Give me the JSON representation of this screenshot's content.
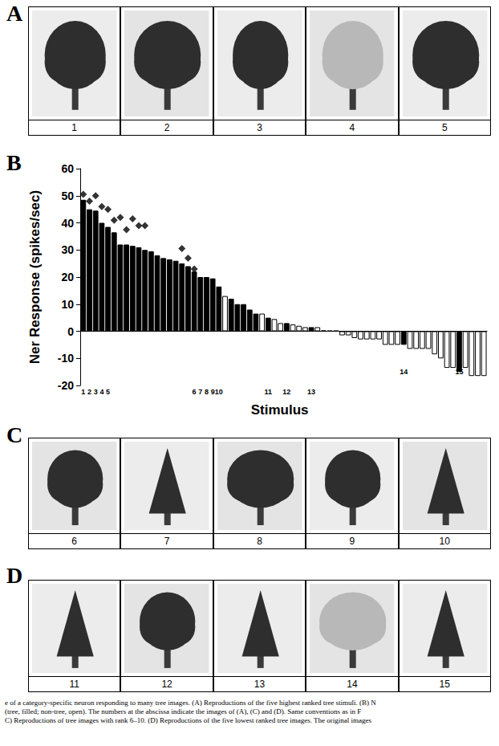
{
  "figure": {
    "panel_labels": [
      "A",
      "B",
      "C",
      "D"
    ],
    "image_numbers": [
      [
        1,
        2,
        3,
        4,
        5
      ],
      [
        6,
        7,
        8,
        9,
        10
      ],
      [
        11,
        12,
        13,
        14,
        15
      ]
    ],
    "caption": [
      "e of a category-specific neuron responding to many tree images. (A) Reproductions of the five highest ranked tree stimuli. (B) N",
      "(tree, filled; non-tree, open). The numbers at the abscissa indicate the images of (A), (C) and (D). Same conventions as in F",
      "C) Reproductions of tree images with rank 6–10. (D) Reproductions of the five lowest ranked tree images. The original images"
    ]
  },
  "chart_data": {
    "type": "bar",
    "xlabel": "Stimulus",
    "ylabel": "Ner Response (spikes/sec)",
    "categories": [
      "1",
      "2",
      "3",
      "4",
      "5",
      null,
      null,
      null,
      null,
      null,
      null,
      null,
      null,
      null,
      null,
      null,
      null,
      null,
      "6",
      "7",
      "8",
      "9",
      "10",
      null,
      null,
      null,
      null,
      null,
      null,
      null,
      "11",
      null,
      null,
      "12",
      null,
      null,
      null,
      "13",
      null,
      null,
      null,
      null,
      null,
      null,
      null,
      null,
      null,
      null,
      null,
      null,
      null,
      null,
      "14",
      null,
      null,
      null,
      null,
      null,
      null,
      null,
      null,
      "15",
      null,
      null,
      null,
      null
    ],
    "series": [
      {
        "type": "bar",
        "values": [
          48.5,
          45,
          44.5,
          40,
          38.5,
          36.5,
          32,
          32,
          31.5,
          31,
          30,
          29.5,
          28,
          27,
          26.5,
          26,
          25,
          24,
          22,
          20,
          20,
          19.5,
          16.5,
          13,
          12,
          10,
          10,
          8,
          6.5,
          6.5,
          5,
          4.5,
          3,
          3,
          2.5,
          2,
          1.5,
          1.5,
          1.5,
          0.3,
          0.2,
          0.2,
          -1.5,
          -1.5,
          -2.5,
          -3,
          -3,
          -3,
          -3,
          -5,
          -5,
          -5,
          -5,
          -6.5,
          -6.5,
          -6.5,
          -6.5,
          -8.5,
          -10,
          -13.5,
          -13.5,
          -15,
          -13.5,
          -16.5,
          -16.5,
          -16.5
        ],
        "colors": [
          "#000000",
          "#000000",
          "#000000",
          "#000000",
          "#000000",
          "#000000",
          "#000000",
          "#000000",
          "#000000",
          "#000000",
          "#000000",
          "#000000",
          "#000000",
          "#000000",
          "#000000",
          "#000000",
          "#000000",
          "#000000",
          "#000000",
          "#000000",
          "#000000",
          "#000000",
          "#000000",
          "#ffffff",
          "#000000",
          "#000000",
          "#000000",
          "#000000",
          "#000000",
          "#ffffff",
          "#000000",
          "#ffffff",
          "#ffffff",
          "#000000",
          "#ffffff",
          "#ffffff",
          "#ffffff",
          "#000000",
          "#ffffff",
          "#ffffff",
          "#ffffff",
          "#ffffff",
          "#ffffff",
          "#ffffff",
          "#ffffff",
          "#ffffff",
          "#ffffff",
          "#ffffff",
          "#ffffff",
          "#ffffff",
          "#ffffff",
          "#ffffff",
          "#000000",
          "#ffffff",
          "#ffffff",
          "#ffffff",
          "#ffffff",
          "#ffffff",
          "#ffffff",
          "#ffffff",
          "#ffffff",
          "#000000",
          "#ffffff",
          "#ffffff",
          "#ffffff",
          "#ffffff"
        ]
      },
      {
        "type": "scatter",
        "marker": "diamond",
        "color": "#000000",
        "values": [
          50.5,
          48,
          50,
          46,
          45,
          41,
          42,
          37.5,
          41.5,
          39,
          39,
          null,
          null,
          null,
          null,
          null,
          30.5,
          27,
          23,
          null,
          null,
          null,
          null,
          null,
          null,
          null,
          null,
          null,
          null,
          null,
          null,
          null,
          null,
          null,
          null,
          null,
          null,
          null,
          null,
          null,
          null,
          null,
          null,
          null,
          null,
          null,
          null,
          null,
          null,
          null,
          null,
          null,
          null,
          null,
          null,
          null,
          null,
          null,
          null,
          null,
          null,
          null,
          null,
          null,
          null,
          null
        ]
      }
    ],
    "ylim": [
      -20,
      60
    ],
    "yticks": [
      -20,
      -10,
      0,
      10,
      20,
      30,
      40,
      50,
      60
    ],
    "grid": false
  }
}
